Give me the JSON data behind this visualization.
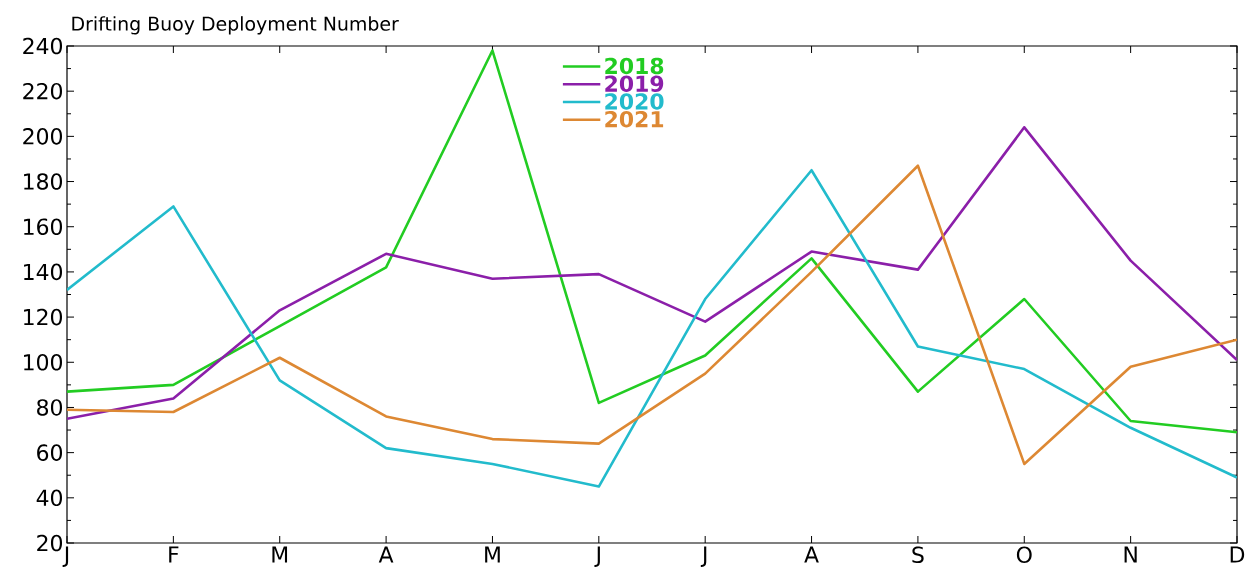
{
  "chart_data": {
    "type": "line",
    "title": "Drifting Buoy Deployment Number",
    "categories": [
      "J",
      "F",
      "M",
      "A",
      "M",
      "J",
      "J",
      "A",
      "S",
      "O",
      "N",
      "D"
    ],
    "series": [
      {
        "name": "2018",
        "color": "#22cc22",
        "values": [
          87,
          90,
          116,
          142,
          238,
          82,
          103,
          146,
          87,
          128,
          74,
          69
        ]
      },
      {
        "name": "2019",
        "color": "#8b1fa9",
        "values": [
          75,
          84,
          123,
          148,
          137,
          139,
          118,
          149,
          141,
          204,
          145,
          101
        ]
      },
      {
        "name": "2020",
        "color": "#22bbcc",
        "values": [
          132,
          169,
          92,
          62,
          55,
          45,
          128,
          185,
          107,
          97,
          71,
          49
        ]
      },
      {
        "name": "2021",
        "color": "#dd8833",
        "values": [
          79,
          78,
          102,
          76,
          66,
          64,
          95,
          140,
          187,
          55,
          98,
          110
        ]
      }
    ],
    "ylim": [
      20,
      240
    ],
    "yticks": [
      20,
      40,
      60,
      80,
      100,
      120,
      140,
      160,
      180,
      200,
      220,
      240
    ],
    "grid": false,
    "legend": "top",
    "marker": "none",
    "line_style": "solid"
  }
}
